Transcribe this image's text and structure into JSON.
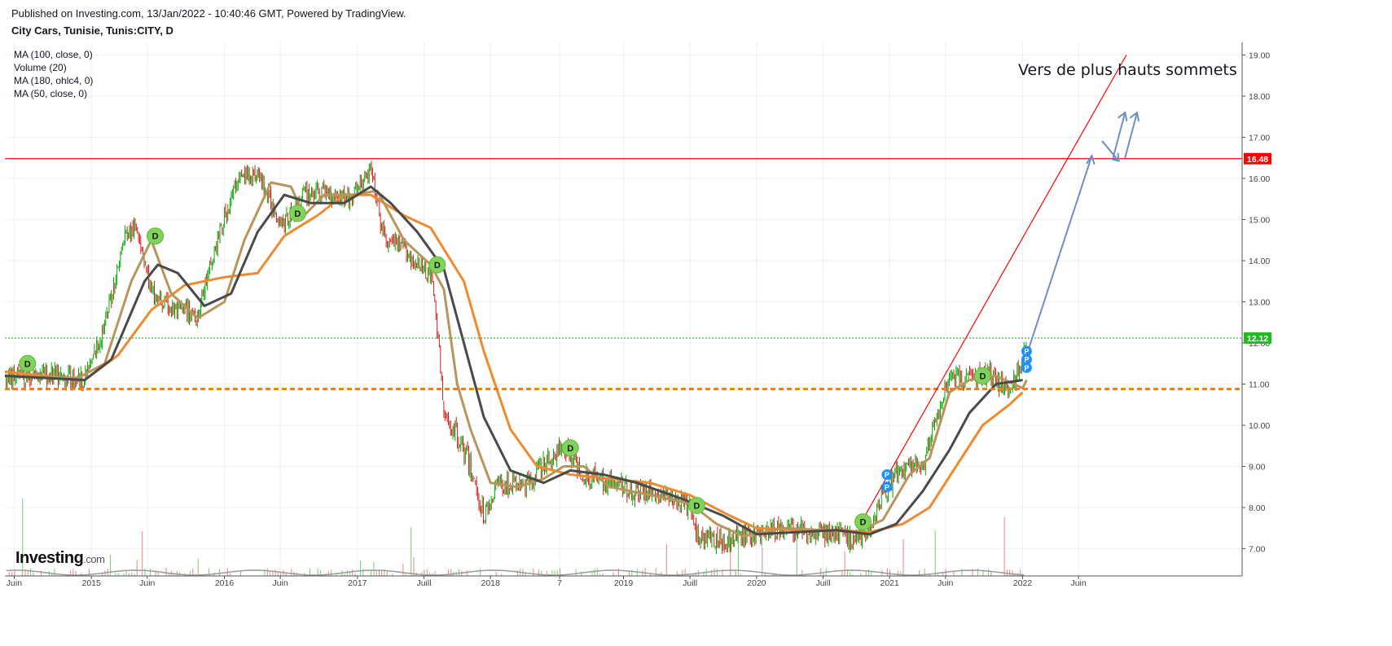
{
  "header": {
    "published": "Published on Investing.com, 13/Jan/2022 - 10:40:46 GMT, Powered by TradingView.",
    "symbol": "City Cars, Tunisie, Tunis:CITY, D"
  },
  "legend": [
    "MA (100, close, 0)",
    "Volume (20)",
    "MA (180, ohlc4, 0)",
    "MA (50, close, 0)"
  ],
  "logo": {
    "text": "Investing",
    "suffix": ".com"
  },
  "chart_data": {
    "type": "candlestick",
    "annotation": "Vers de plus hauts sommets",
    "ylim": [
      6.8,
      19.8
    ],
    "y_ticks": [
      "7.00",
      "8.00",
      "9.00",
      "10.00",
      "11.00",
      "12.00",
      "13.00",
      "14.00",
      "15.00",
      "16.00",
      "17.00",
      "18.00",
      "19.00"
    ],
    "x_ticks": [
      {
        "label": "Juin",
        "t": 2014.42
      },
      {
        "label": "2015",
        "t": 2015.0
      },
      {
        "label": "Juin",
        "t": 2015.42
      },
      {
        "label": "2016",
        "t": 2016.0
      },
      {
        "label": "Juin",
        "t": 2016.42
      },
      {
        "label": "2017",
        "t": 2017.0
      },
      {
        "label": "Juill",
        "t": 2017.5
      },
      {
        "label": "2018",
        "t": 2018.0
      },
      {
        "label": "7",
        "t": 2018.52
      },
      {
        "label": "2019",
        "t": 2019.0
      },
      {
        "label": "Juill",
        "t": 2019.5
      },
      {
        "label": "2020",
        "t": 2020.0
      },
      {
        "label": "Juill",
        "t": 2020.5
      },
      {
        "label": "2021",
        "t": 2021.0
      },
      {
        "label": "Juin",
        "t": 2021.42
      },
      {
        "label": "2022",
        "t": 2022.0
      },
      {
        "label": "Juin",
        "t": 2022.42
      }
    ],
    "xlim": [
      2014.35,
      2023.65
    ],
    "price_path": [
      [
        2014.35,
        11.1
      ],
      [
        2014.6,
        11.25
      ],
      [
        2014.95,
        11.1
      ],
      [
        2015.1,
        12.4
      ],
      [
        2015.25,
        14.6
      ],
      [
        2015.35,
        14.8
      ],
      [
        2015.45,
        13.2
      ],
      [
        2015.6,
        12.8
      ],
      [
        2015.8,
        12.7
      ],
      [
        2015.95,
        14.5
      ],
      [
        2016.1,
        16.0
      ],
      [
        2016.25,
        16.1
      ],
      [
        2016.35,
        15.4
      ],
      [
        2016.45,
        14.9
      ],
      [
        2016.6,
        15.6
      ],
      [
        2016.75,
        15.7
      ],
      [
        2016.95,
        15.5
      ],
      [
        2017.1,
        16.2
      ],
      [
        2017.2,
        14.5
      ],
      [
        2017.35,
        14.3
      ],
      [
        2017.45,
        13.9
      ],
      [
        2017.55,
        13.7
      ],
      [
        2017.6,
        12.4
      ],
      [
        2017.65,
        10.2
      ],
      [
        2017.75,
        9.8
      ],
      [
        2017.85,
        9.0
      ],
      [
        2017.95,
        7.8
      ],
      [
        2018.05,
        8.6
      ],
      [
        2018.25,
        8.5
      ],
      [
        2018.45,
        9.2
      ],
      [
        2018.55,
        9.5
      ],
      [
        2018.7,
        8.8
      ],
      [
        2018.9,
        8.6
      ],
      [
        2019.1,
        8.4
      ],
      [
        2019.3,
        8.3
      ],
      [
        2019.5,
        8.0
      ],
      [
        2019.55,
        7.3
      ],
      [
        2019.75,
        7.2
      ],
      [
        2019.95,
        7.3
      ],
      [
        2020.2,
        7.5
      ],
      [
        2020.45,
        7.4
      ],
      [
        2020.65,
        7.3
      ],
      [
        2020.75,
        7.2
      ],
      [
        2020.85,
        7.5
      ],
      [
        2020.95,
        8.3
      ],
      [
        2021.05,
        8.8
      ],
      [
        2021.15,
        9.0
      ],
      [
        2021.25,
        8.9
      ],
      [
        2021.35,
        10.2
      ],
      [
        2021.45,
        11.2
      ],
      [
        2021.6,
        11.1
      ],
      [
        2021.75,
        11.3
      ],
      [
        2021.9,
        10.8
      ],
      [
        2022.0,
        11.5
      ],
      [
        2022.03,
        12.0
      ]
    ],
    "ma50": [
      [
        2014.35,
        11.2
      ],
      [
        2014.9,
        11.15
      ],
      [
        2015.1,
        11.5
      ],
      [
        2015.3,
        13.5
      ],
      [
        2015.45,
        14.5
      ],
      [
        2015.6,
        13.2
      ],
      [
        2015.8,
        12.6
      ],
      [
        2016.0,
        13.0
      ],
      [
        2016.15,
        14.5
      ],
      [
        2016.35,
        15.9
      ],
      [
        2016.5,
        15.8
      ],
      [
        2016.6,
        15.1
      ],
      [
        2016.75,
        15.6
      ],
      [
        2016.95,
        15.6
      ],
      [
        2017.15,
        15.7
      ],
      [
        2017.35,
        14.5
      ],
      [
        2017.55,
        13.9
      ],
      [
        2017.65,
        13.3
      ],
      [
        2017.75,
        11.0
      ],
      [
        2017.85,
        9.9
      ],
      [
        2018.0,
        8.6
      ],
      [
        2018.2,
        8.5
      ],
      [
        2018.4,
        8.7
      ],
      [
        2018.55,
        9.0
      ],
      [
        2018.7,
        9.0
      ],
      [
        2018.9,
        8.5
      ],
      [
        2019.2,
        8.3
      ],
      [
        2019.5,
        8.1
      ],
      [
        2019.7,
        7.6
      ],
      [
        2019.9,
        7.3
      ],
      [
        2020.2,
        7.5
      ],
      [
        2020.5,
        7.45
      ],
      [
        2020.75,
        7.4
      ],
      [
        2020.95,
        7.7
      ],
      [
        2021.15,
        8.8
      ],
      [
        2021.3,
        9.2
      ],
      [
        2021.45,
        10.8
      ],
      [
        2021.6,
        11.1
      ],
      [
        2021.8,
        11.2
      ],
      [
        2022.0,
        10.9
      ],
      [
        2022.03,
        11.1
      ]
    ],
    "ma100": [
      [
        2014.35,
        11.2
      ],
      [
        2014.95,
        11.1
      ],
      [
        2015.15,
        11.6
      ],
      [
        2015.4,
        13.5
      ],
      [
        2015.5,
        13.9
      ],
      [
        2015.65,
        13.7
      ],
      [
        2015.85,
        12.9
      ],
      [
        2016.05,
        13.2
      ],
      [
        2016.25,
        14.7
      ],
      [
        2016.45,
        15.6
      ],
      [
        2016.65,
        15.4
      ],
      [
        2016.9,
        15.4
      ],
      [
        2017.1,
        15.8
      ],
      [
        2017.25,
        15.4
      ],
      [
        2017.45,
        14.7
      ],
      [
        2017.65,
        13.8
      ],
      [
        2017.8,
        12.0
      ],
      [
        2017.95,
        10.2
      ],
      [
        2018.15,
        8.9
      ],
      [
        2018.4,
        8.6
      ],
      [
        2018.6,
        8.9
      ],
      [
        2018.85,
        8.8
      ],
      [
        2019.1,
        8.6
      ],
      [
        2019.45,
        8.2
      ],
      [
        2019.75,
        7.8
      ],
      [
        2020.0,
        7.35
      ],
      [
        2020.3,
        7.4
      ],
      [
        2020.6,
        7.45
      ],
      [
        2020.85,
        7.35
      ],
      [
        2021.05,
        7.6
      ],
      [
        2021.25,
        8.4
      ],
      [
        2021.45,
        9.4
      ],
      [
        2021.6,
        10.3
      ],
      [
        2021.8,
        11.0
      ],
      [
        2022.0,
        11.1
      ]
    ],
    "ma180": [
      [
        2014.35,
        11.3
      ],
      [
        2014.95,
        11.1
      ],
      [
        2015.2,
        11.7
      ],
      [
        2015.45,
        12.8
      ],
      [
        2015.7,
        13.4
      ],
      [
        2016.0,
        13.6
      ],
      [
        2016.25,
        13.7
      ],
      [
        2016.45,
        14.6
      ],
      [
        2016.7,
        15.1
      ],
      [
        2016.9,
        15.6
      ],
      [
        2017.1,
        15.6
      ],
      [
        2017.35,
        15.1
      ],
      [
        2017.55,
        14.8
      ],
      [
        2017.8,
        13.5
      ],
      [
        2017.95,
        11.8
      ],
      [
        2018.15,
        9.9
      ],
      [
        2018.35,
        9.0
      ],
      [
        2018.6,
        8.8
      ],
      [
        2018.9,
        8.7
      ],
      [
        2019.2,
        8.6
      ],
      [
        2019.5,
        8.3
      ],
      [
        2019.8,
        7.8
      ],
      [
        2020.0,
        7.5
      ],
      [
        2020.3,
        7.45
      ],
      [
        2020.6,
        7.45
      ],
      [
        2020.85,
        7.4
      ],
      [
        2021.1,
        7.6
      ],
      [
        2021.3,
        8.0
      ],
      [
        2021.5,
        9.0
      ],
      [
        2021.7,
        10.0
      ],
      [
        2021.9,
        10.5
      ],
      [
        2022.0,
        10.8
      ]
    ],
    "dividend_markers": [
      [
        2014.52,
        11.5
      ],
      [
        2015.48,
        14.6
      ],
      [
        2016.55,
        15.15
      ],
      [
        2017.6,
        13.9
      ],
      [
        2018.6,
        9.45
      ],
      [
        2019.55,
        8.05
      ],
      [
        2020.8,
        7.65
      ],
      [
        2021.7,
        11.2
      ]
    ],
    "split_markers": [
      [
        2020.98,
        8.5
      ],
      [
        2020.98,
        8.8
      ],
      [
        2022.03,
        11.4
      ],
      [
        2022.03,
        11.6
      ],
      [
        2022.03,
        11.8
      ]
    ],
    "levels": [
      {
        "value": 16.48,
        "label": "16.48",
        "color": "#ff0000",
        "style": "solid"
      },
      {
        "value": 12.12,
        "label": "12.12",
        "color": "#22bb22",
        "style": "dotted"
      },
      {
        "value": 10.88,
        "label": "",
        "color": "#ef7f1a",
        "style": "dashed"
      }
    ],
    "colors": {
      "up": "#00a800",
      "down": "#d02020",
      "ma50": "#b8955a",
      "ma100": "#4a4a4a",
      "ma180": "#ef8a30",
      "trend": "#ff0000",
      "projection": "#6f8ec6",
      "dividend": "#7fd35a",
      "split": "#1e90ff"
    },
    "trendline": [
      [
        2020.78,
        7.6
      ],
      [
        2022.78,
        19.0
      ]
    ],
    "projection": [
      [
        2022.05,
        11.9
      ],
      [
        2022.52,
        16.55
      ]
    ]
  }
}
